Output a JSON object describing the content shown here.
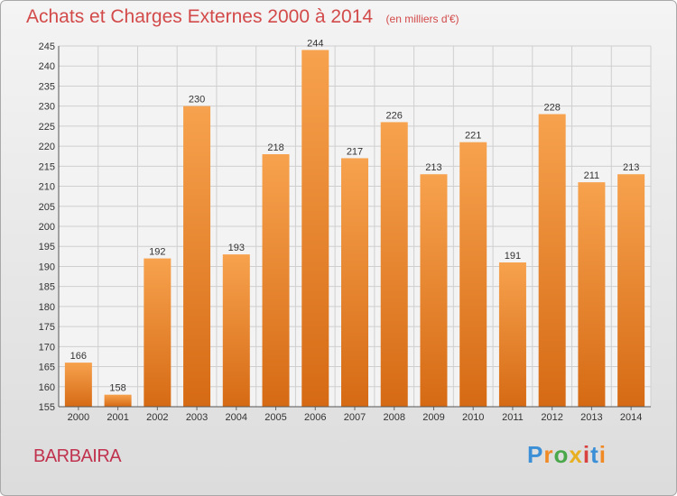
{
  "header": {
    "title": "Achats et Charges Externes 2000 à 2014",
    "subtitle": "(en milliers d'€)"
  },
  "footer": {
    "commune": "BARBAIRA",
    "brand": "Proxiti",
    "brand_colors": [
      "#3a8fd6",
      "#f08a24",
      "#4aa84a",
      "#e8b020",
      "#d94040",
      "#3a8fd6",
      "#f08a24"
    ]
  },
  "colors": {
    "bar_light": "#f7a24e",
    "bar_dark": "#d66a14",
    "title": "#d34a4a",
    "grid": "#cfcfcf"
  },
  "chart_data": {
    "type": "bar",
    "title": "Achats et Charges Externes 2000 à 2014",
    "subtitle": "(en milliers d'€)",
    "xlabel": "",
    "ylabel": "",
    "categories": [
      "2000",
      "2001",
      "2002",
      "2003",
      "2004",
      "2005",
      "2006",
      "2007",
      "2008",
      "2009",
      "2010",
      "2011",
      "2012",
      "2013",
      "2014"
    ],
    "values": [
      166,
      158,
      192,
      230,
      193,
      218,
      244,
      217,
      226,
      213,
      221,
      191,
      228,
      211,
      213
    ],
    "ylim": [
      155,
      245
    ],
    "yticks": [
      155,
      160,
      165,
      170,
      175,
      180,
      185,
      190,
      195,
      200,
      205,
      210,
      215,
      220,
      225,
      230,
      235,
      240,
      245
    ],
    "grid": true,
    "data_labels": true
  }
}
